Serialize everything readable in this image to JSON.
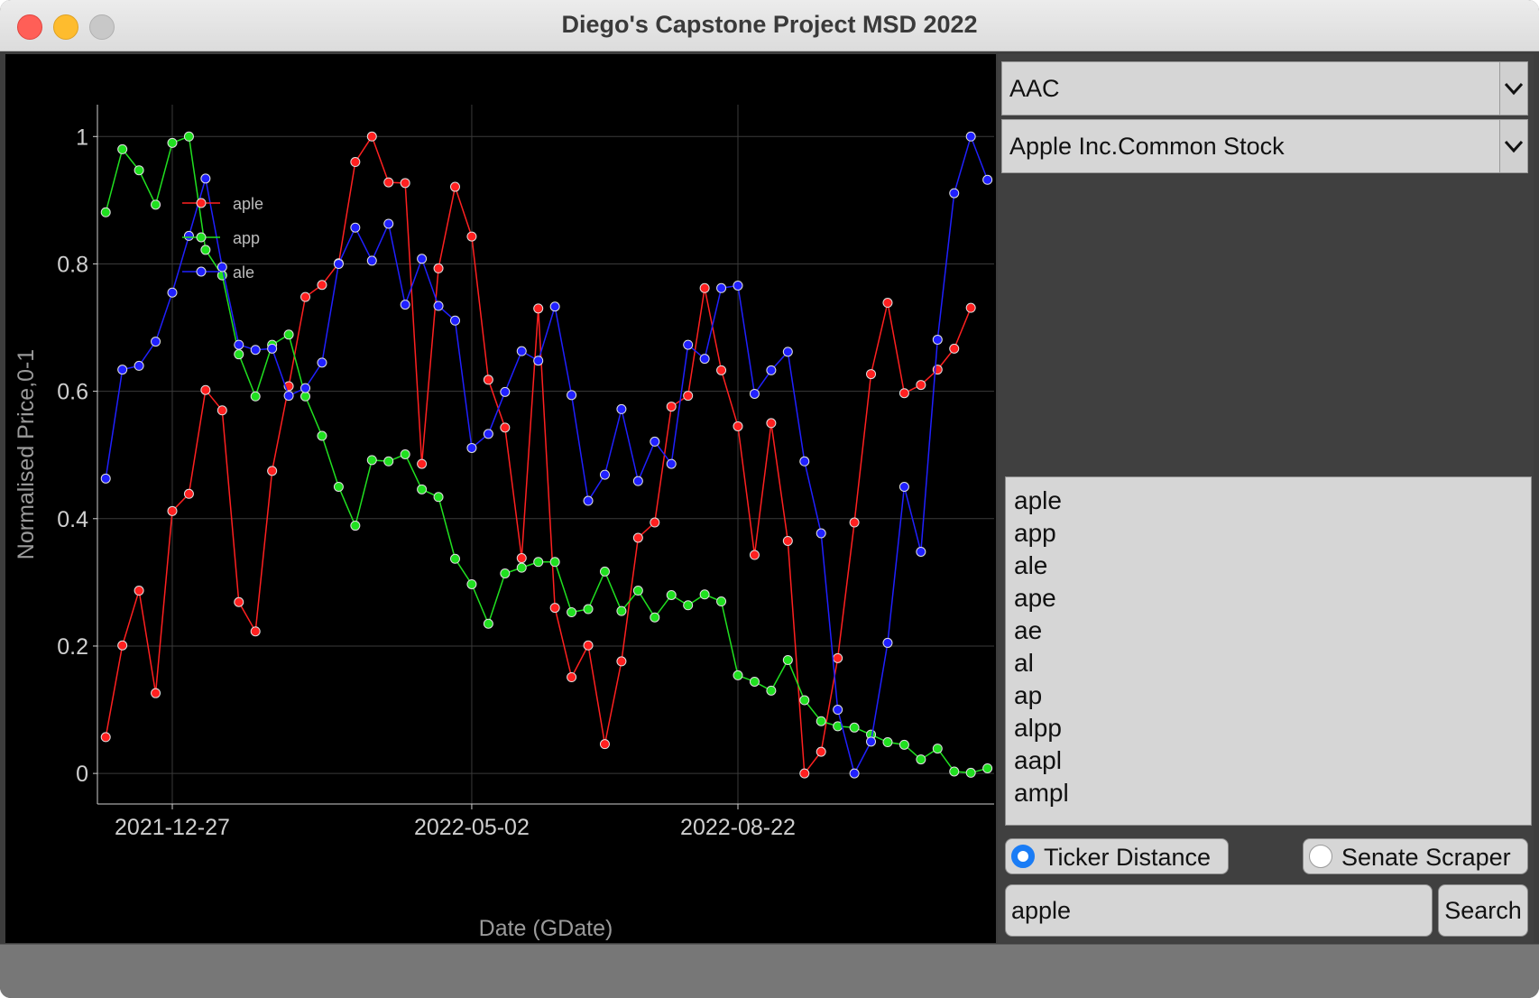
{
  "window": {
    "title": "Diego's Capstone Project MSD 2022"
  },
  "ticker_combo": {
    "value": "AAC"
  },
  "company_combo": {
    "value": "Apple Inc.Common Stock"
  },
  "results": [
    "aple",
    "app",
    "ale",
    "ape",
    "ae",
    "al",
    "ap",
    "alpp",
    "aapl",
    "ampl"
  ],
  "mode": {
    "ticker_distance": {
      "label": "Ticker Distance",
      "selected": true
    },
    "senate_scraper": {
      "label": "Senate Scraper",
      "selected": false
    }
  },
  "search": {
    "value": "apple",
    "button_label": "Search"
  },
  "colors": {
    "aple": "#ff2020",
    "app": "#20e020",
    "ale": "#2020ff"
  },
  "chart_data": {
    "type": "line",
    "xlabel": "Date (GDate)",
    "ylabel": "Normalised Price,0-1",
    "x_tick_labels": [
      "2021-12-27",
      "2022-05-02",
      "2022-08-22"
    ],
    "x_tick_index": [
      4,
      22,
      38
    ],
    "y_ticks": [
      0,
      0.2,
      0.4,
      0.6,
      0.8,
      1
    ],
    "ylim": [
      -0.048,
      1.05
    ],
    "xlim": [
      -0.5,
      53.4
    ],
    "legend": {
      "position": "top-left"
    },
    "series": [
      {
        "name": "aple",
        "values": [
          0.057,
          0.201,
          0.287,
          0.126,
          0.412,
          0.439,
          0.602,
          0.57,
          0.269,
          0.223,
          0.475,
          0.608,
          0.748,
          0.767,
          0.801,
          0.96,
          1.0,
          0.928,
          0.927,
          0.486,
          0.793,
          0.921,
          0.843,
          0.618,
          0.543,
          0.338,
          0.73,
          0.26,
          0.151,
          0.201,
          0.046,
          0.176,
          0.37,
          0.394,
          0.576,
          0.593,
          0.762,
          0.633,
          0.545,
          0.343,
          0.55,
          0.365,
          0.0,
          0.034,
          0.181,
          0.394,
          0.627,
          0.739,
          0.597,
          0.61,
          0.634,
          0.667,
          0.731
        ]
      },
      {
        "name": "app",
        "values": [
          0.881,
          0.98,
          0.947,
          0.893,
          0.99,
          1.0,
          0.822,
          0.782,
          0.658,
          0.592,
          0.673,
          0.689,
          0.592,
          0.53,
          0.45,
          0.389,
          0.492,
          0.49,
          0.501,
          0.446,
          0.434,
          0.337,
          0.297,
          0.235,
          0.314,
          0.323,
          0.332,
          0.332,
          0.253,
          0.258,
          0.317,
          0.255,
          0.287,
          0.245,
          0.28,
          0.264,
          0.281,
          0.27,
          0.154,
          0.144,
          0.13,
          0.178,
          0.115,
          0.082,
          0.074,
          0.072,
          0.061,
          0.049,
          0.045,
          0.022,
          0.039,
          0.003,
          0.001,
          0.008
        ]
      },
      {
        "name": "ale",
        "values": [
          0.463,
          0.634,
          0.64,
          0.678,
          0.755,
          0.844,
          0.934,
          0.795,
          0.673,
          0.665,
          0.667,
          0.593,
          0.605,
          0.645,
          0.8,
          0.857,
          0.805,
          0.863,
          0.736,
          0.808,
          0.734,
          0.711,
          0.511,
          0.533,
          0.599,
          0.663,
          0.648,
          0.733,
          0.594,
          0.428,
          0.469,
          0.572,
          0.459,
          0.521,
          0.486,
          0.673,
          0.651,
          0.762,
          0.766,
          0.596,
          0.633,
          0.662,
          0.49,
          0.377,
          0.1,
          0.0,
          0.05,
          0.205,
          0.45,
          0.348,
          0.681,
          0.911,
          1.0,
          0.932
        ]
      }
    ]
  }
}
